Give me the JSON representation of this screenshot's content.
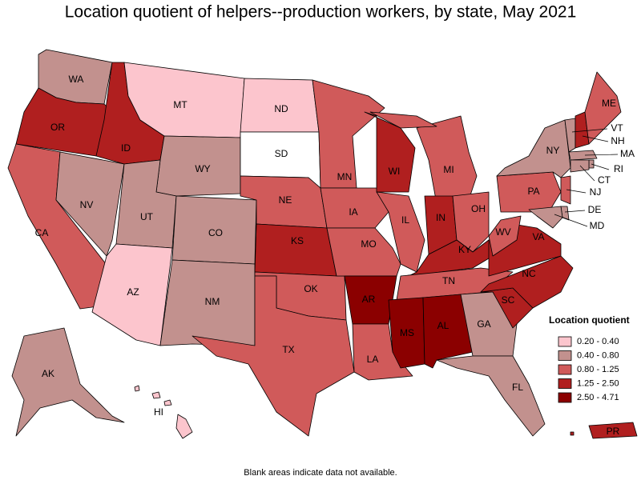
{
  "title": "Location quotient of helpers--production workers, by state, May 2021",
  "note": "Blank areas indicate data not available.",
  "legend": {
    "title": "Location quotient",
    "items": [
      {
        "label": "0.20 - 0.40",
        "color": "#fcc5cd"
      },
      {
        "label": "0.40 - 0.80",
        "color": "#c2918e"
      },
      {
        "label": "0.80 - 1.25",
        "color": "#d05a5a"
      },
      {
        "label": "1.25 - 2.50",
        "color": "#b01f1f"
      },
      {
        "label": "2.50 - 4.71",
        "color": "#8b0000"
      }
    ]
  },
  "states": [
    {
      "label": "WA",
      "color": "#c2918e"
    },
    {
      "label": "OR",
      "color": "#b01f1f"
    },
    {
      "label": "CA",
      "color": "#d05a5a"
    },
    {
      "label": "NV",
      "color": "#c2918e"
    },
    {
      "label": "ID",
      "color": "#b01f1f"
    },
    {
      "label": "MT",
      "color": "#fcc5cd"
    },
    {
      "label": "WY",
      "color": "#c2918e"
    },
    {
      "label": "UT",
      "color": "#c2918e"
    },
    {
      "label": "AZ",
      "color": "#fcc5cd"
    },
    {
      "label": "CO",
      "color": "#c2918e"
    },
    {
      "label": "NM",
      "color": "#c2918e"
    },
    {
      "label": "ND",
      "color": "#fcc5cd"
    },
    {
      "label": "SD",
      "color": "#ffffff"
    },
    {
      "label": "NE",
      "color": "#d05a5a"
    },
    {
      "label": "KS",
      "color": "#b01f1f"
    },
    {
      "label": "OK",
      "color": "#d05a5a"
    },
    {
      "label": "TX",
      "color": "#d05a5a"
    },
    {
      "label": "MN",
      "color": "#d05a5a"
    },
    {
      "label": "IA",
      "color": "#d05a5a"
    },
    {
      "label": "MO",
      "color": "#d05a5a"
    },
    {
      "label": "AR",
      "color": "#8b0000"
    },
    {
      "label": "LA",
      "color": "#d05a5a"
    },
    {
      "label": "WI",
      "color": "#b01f1f"
    },
    {
      "label": "IL",
      "color": "#d05a5a"
    },
    {
      "label": "MI",
      "color": "#d05a5a"
    },
    {
      "label": "IN",
      "color": "#b01f1f"
    },
    {
      "label": "OH",
      "color": "#d05a5a"
    },
    {
      "label": "KY",
      "color": "#b01f1f"
    },
    {
      "label": "TN",
      "color": "#d05a5a"
    },
    {
      "label": "MS",
      "color": "#8b0000"
    },
    {
      "label": "AL",
      "color": "#8b0000"
    },
    {
      "label": "GA",
      "color": "#c2918e"
    },
    {
      "label": "FL",
      "color": "#c2918e"
    },
    {
      "label": "SC",
      "color": "#b01f1f"
    },
    {
      "label": "NC",
      "color": "#b01f1f"
    },
    {
      "label": "VA",
      "color": "#b01f1f"
    },
    {
      "label": "WV",
      "color": "#d05a5a"
    },
    {
      "label": "PA",
      "color": "#d05a5a"
    },
    {
      "label": "NY",
      "color": "#c2918e"
    },
    {
      "label": "VT",
      "color": "#c2918e"
    },
    {
      "label": "NH",
      "color": "#b01f1f"
    },
    {
      "label": "ME",
      "color": "#d05a5a"
    },
    {
      "label": "MA",
      "color": "#c2918e"
    },
    {
      "label": "RI",
      "color": "#c2918e"
    },
    {
      "label": "CT",
      "color": "#c2918e"
    },
    {
      "label": "NJ",
      "color": "#d05a5a"
    },
    {
      "label": "DE",
      "color": "#c2918e"
    },
    {
      "label": "MD",
      "color": "#c2918e"
    },
    {
      "label": "AK",
      "color": "#c2918e"
    },
    {
      "label": "HI",
      "color": "#fcc5cd"
    },
    {
      "label": "PR",
      "color": "#b01f1f"
    }
  ]
}
